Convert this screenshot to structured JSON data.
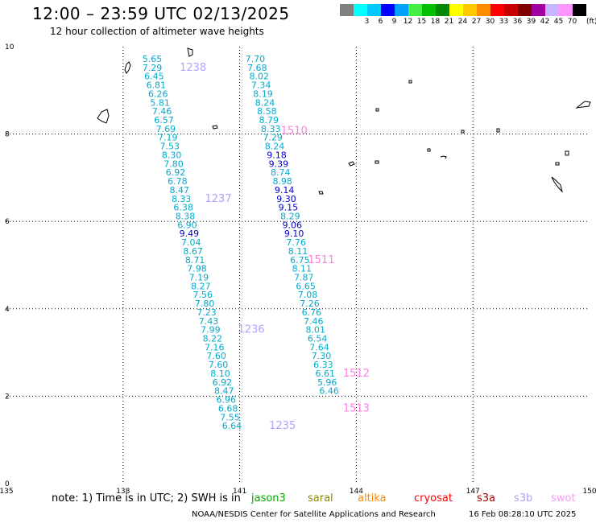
{
  "header": {
    "title": "12:00 – 23:59 UTC 02/13/2025",
    "subtitle": "12 hour collection of altimeter wave heights"
  },
  "legend": {
    "unit": "(ft)",
    "bins": [
      {
        "label": "",
        "color": "#808080"
      },
      {
        "label": "3",
        "color": "#00ffff"
      },
      {
        "label": "6",
        "color": "#00c8ff"
      },
      {
        "label": "9",
        "color": "#0000ff"
      },
      {
        "label": "12",
        "color": "#00a0ff"
      },
      {
        "label": "15",
        "color": "#44ee44"
      },
      {
        "label": "18",
        "color": "#00c000"
      },
      {
        "label": "21",
        "color": "#008800"
      },
      {
        "label": "24",
        "color": "#ffff00"
      },
      {
        "label": "27",
        "color": "#ffc800"
      },
      {
        "label": "30",
        "color": "#ff8c00"
      },
      {
        "label": "33",
        "color": "#ff0000"
      },
      {
        "label": "36",
        "color": "#c80000"
      },
      {
        "label": "39",
        "color": "#800000"
      },
      {
        "label": "42",
        "color": "#a000a0"
      },
      {
        "label": "45",
        "color": "#c8b4ff"
      },
      {
        "label": "70",
        "color": "#ff96ff"
      },
      {
        "label": "",
        "color": "#000000"
      }
    ]
  },
  "map": {
    "lon_ticks": [
      "135",
      "138",
      "141",
      "144",
      "147",
      "150"
    ],
    "lat_ticks": [
      "0",
      "2",
      "4",
      "6",
      "8",
      "10"
    ],
    "tick_values": {
      "lon": [
        135,
        138,
        141,
        144,
        147,
        150
      ],
      "lat": [
        0,
        2,
        4,
        6,
        8,
        10
      ]
    },
    "lon_range": [
      135,
      150
    ],
    "lat_range": [
      0,
      10
    ],
    "grid": "dotted",
    "track_left": {
      "color": "#00aacc",
      "points": [
        {
          "lon": 138.75,
          "lat": 9.65,
          "v": "5.65"
        },
        {
          "lon": 138.75,
          "lat": 9.45,
          "v": "7.29"
        },
        {
          "lon": 138.8,
          "lat": 9.25,
          "v": "6.45"
        },
        {
          "lon": 138.85,
          "lat": 9.05,
          "v": "6.81"
        },
        {
          "lon": 138.9,
          "lat": 8.85,
          "v": "6.26"
        },
        {
          "lon": 138.95,
          "lat": 8.65,
          "v": "5.81"
        },
        {
          "lon": 139.0,
          "lat": 8.45,
          "v": "7.46"
        },
        {
          "lon": 139.05,
          "lat": 8.25,
          "v": "6.57"
        },
        {
          "lon": 139.1,
          "lat": 8.05,
          "v": "7.69"
        },
        {
          "lon": 139.15,
          "lat": 7.85,
          "v": "7.19"
        },
        {
          "lon": 139.2,
          "lat": 7.65,
          "v": "7.53"
        },
        {
          "lon": 139.25,
          "lat": 7.45,
          "v": "8.30"
        },
        {
          "lon": 139.3,
          "lat": 7.25,
          "v": "7.80"
        },
        {
          "lon": 139.35,
          "lat": 7.05,
          "v": "6.92"
        },
        {
          "lon": 139.4,
          "lat": 6.85,
          "v": "6.78"
        },
        {
          "lon": 139.45,
          "lat": 6.65,
          "v": "8.47"
        },
        {
          "lon": 139.5,
          "lat": 6.45,
          "v": "8.33"
        },
        {
          "lon": 139.55,
          "lat": 6.25,
          "v": "6.38"
        },
        {
          "lon": 139.6,
          "lat": 6.05,
          "v": "8.38"
        },
        {
          "lon": 139.65,
          "lat": 5.85,
          "v": "6.90"
        },
        {
          "lon": 139.7,
          "lat": 5.65,
          "v": "9.49",
          "c": "#0000cc"
        },
        {
          "lon": 139.75,
          "lat": 5.45,
          "v": "7.04"
        },
        {
          "lon": 139.8,
          "lat": 5.25,
          "v": "8.67"
        },
        {
          "lon": 139.85,
          "lat": 5.05,
          "v": "8.71"
        },
        {
          "lon": 139.9,
          "lat": 4.85,
          "v": "7.98"
        },
        {
          "lon": 139.95,
          "lat": 4.65,
          "v": "7.19"
        },
        {
          "lon": 140.0,
          "lat": 4.45,
          "v": "8.27"
        },
        {
          "lon": 140.05,
          "lat": 4.25,
          "v": "7.56"
        },
        {
          "lon": 140.1,
          "lat": 4.05,
          "v": "7.80"
        },
        {
          "lon": 140.15,
          "lat": 3.85,
          "v": "7.23"
        },
        {
          "lon": 140.2,
          "lat": 3.65,
          "v": "7.43"
        },
        {
          "lon": 140.25,
          "lat": 3.45,
          "v": "7.99"
        },
        {
          "lon": 140.3,
          "lat": 3.25,
          "v": "8.22"
        },
        {
          "lon": 140.35,
          "lat": 3.05,
          "v": "7.16"
        },
        {
          "lon": 140.4,
          "lat": 2.85,
          "v": "7.60"
        },
        {
          "lon": 140.45,
          "lat": 2.65,
          "v": "7.60"
        },
        {
          "lon": 140.5,
          "lat": 2.45,
          "v": "8.10"
        },
        {
          "lon": 140.55,
          "lat": 2.25,
          "v": "6.92"
        },
        {
          "lon": 140.6,
          "lat": 2.05,
          "v": "8.47"
        },
        {
          "lon": 140.65,
          "lat": 1.85,
          "v": "6.96"
        },
        {
          "lon": 140.7,
          "lat": 1.65,
          "v": "6.68"
        },
        {
          "lon": 140.75,
          "lat": 1.45,
          "v": "7.55"
        },
        {
          "lon": 140.8,
          "lat": 1.25,
          "v": "6.64"
        }
      ]
    },
    "track_right": {
      "color": "#00aacc",
      "points": [
        {
          "lon": 141.4,
          "lat": 9.65,
          "v": "7.70"
        },
        {
          "lon": 141.45,
          "lat": 9.45,
          "v": "7.68"
        },
        {
          "lon": 141.5,
          "lat": 9.25,
          "v": "8.02"
        },
        {
          "lon": 141.55,
          "lat": 9.05,
          "v": "7.34"
        },
        {
          "lon": 141.6,
          "lat": 8.85,
          "v": "8.19"
        },
        {
          "lon": 141.65,
          "lat": 8.65,
          "v": "8.24"
        },
        {
          "lon": 141.7,
          "lat": 8.45,
          "v": "8.58"
        },
        {
          "lon": 141.75,
          "lat": 8.25,
          "v": "8.79"
        },
        {
          "lon": 141.8,
          "lat": 8.05,
          "v": "8.33"
        },
        {
          "lon": 141.85,
          "lat": 7.85,
          "v": "7.29"
        },
        {
          "lon": 141.9,
          "lat": 7.65,
          "v": "8.24"
        },
        {
          "lon": 141.95,
          "lat": 7.45,
          "v": "9.18",
          "c": "#0000cc"
        },
        {
          "lon": 142.0,
          "lat": 7.25,
          "v": "9.39",
          "c": "#0000cc"
        },
        {
          "lon": 142.05,
          "lat": 7.05,
          "v": "8.74"
        },
        {
          "lon": 142.1,
          "lat": 6.85,
          "v": "8.98"
        },
        {
          "lon": 142.15,
          "lat": 6.65,
          "v": "9.14",
          "c": "#0000cc"
        },
        {
          "lon": 142.2,
          "lat": 6.45,
          "v": "9.30",
          "c": "#0000cc"
        },
        {
          "lon": 142.25,
          "lat": 6.25,
          "v": "9.15",
          "c": "#0000cc"
        },
        {
          "lon": 142.3,
          "lat": 6.05,
          "v": "8.29"
        },
        {
          "lon": 142.35,
          "lat": 5.85,
          "v": "9.06",
          "c": "#0000cc"
        },
        {
          "lon": 142.4,
          "lat": 5.65,
          "v": "9.10",
          "c": "#0000cc"
        },
        {
          "lon": 142.45,
          "lat": 5.45,
          "v": "7.76"
        },
        {
          "lon": 142.5,
          "lat": 5.25,
          "v": "8.11"
        },
        {
          "lon": 142.55,
          "lat": 5.05,
          "v": "6.75"
        },
        {
          "lon": 142.6,
          "lat": 4.85,
          "v": "8.11"
        },
        {
          "lon": 142.65,
          "lat": 4.65,
          "v": "7.87"
        },
        {
          "lon": 142.7,
          "lat": 4.45,
          "v": "6.65"
        },
        {
          "lon": 142.75,
          "lat": 4.25,
          "v": "7.08"
        },
        {
          "lon": 142.8,
          "lat": 4.05,
          "v": "7.26"
        },
        {
          "lon": 142.85,
          "lat": 3.85,
          "v": "6.76"
        },
        {
          "lon": 142.9,
          "lat": 3.65,
          "v": "7.46"
        },
        {
          "lon": 142.95,
          "lat": 3.45,
          "v": "8.01"
        },
        {
          "lon": 143.0,
          "lat": 3.25,
          "v": "6.54"
        },
        {
          "lon": 143.05,
          "lat": 3.05,
          "v": "7.64"
        },
        {
          "lon": 143.1,
          "lat": 2.85,
          "v": "7.30"
        },
        {
          "lon": 143.15,
          "lat": 2.65,
          "v": "6.33"
        },
        {
          "lon": 143.2,
          "lat": 2.45,
          "v": "6.61"
        },
        {
          "lon": 143.25,
          "lat": 2.25,
          "v": "5.96"
        },
        {
          "lon": 143.3,
          "lat": 2.05,
          "v": "6.46"
        }
      ]
    },
    "time_labels": [
      {
        "lon": 139.8,
        "lat": 9.45,
        "text": "1238",
        "color": "#b4a0ff"
      },
      {
        "lon": 142.4,
        "lat": 8.0,
        "text": "1510",
        "color": "#ff80e0"
      },
      {
        "lon": 140.45,
        "lat": 6.45,
        "text": "1237",
        "color": "#b4a0ff"
      },
      {
        "lon": 143.1,
        "lat": 5.05,
        "text": "1511",
        "color": "#ff80e0"
      },
      {
        "lon": 141.3,
        "lat": 3.45,
        "text": "1236",
        "color": "#b4a0ff"
      },
      {
        "lon": 144.0,
        "lat": 2.45,
        "text": "1512",
        "color": "#ff80e0"
      },
      {
        "lon": 144.0,
        "lat": 1.65,
        "text": "1513",
        "color": "#ff80e0"
      },
      {
        "lon": 142.1,
        "lat": 1.25,
        "text": "1235",
        "color": "#b4a0ff"
      }
    ]
  },
  "note": {
    "text": "note: 1) Time is in UTC; 2) SWH is in",
    "satellites": [
      {
        "label": "jason3",
        "color": "#00aa00"
      },
      {
        "label": "saral",
        "color": "#888800"
      },
      {
        "label": "altika",
        "color": "#ff8800"
      },
      {
        "label": "cryosat",
        "color": "#ff0000"
      },
      {
        "label": "s3a",
        "color": "#aa0000"
      },
      {
        "label": "s3b",
        "color": "#b4a0ff"
      },
      {
        "label": "swot",
        "color": "#ff96ff"
      }
    ]
  },
  "credit": {
    "org": "NOAA/NESDIS Center for Satellite Applications and Research",
    "date": "16 Feb 08:28:10 UTC 2025"
  }
}
